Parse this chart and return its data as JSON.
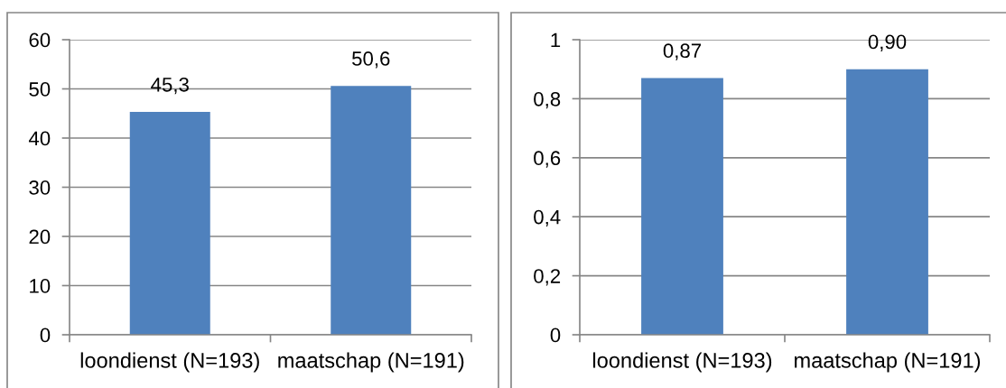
{
  "chart_data": [
    {
      "type": "bar",
      "categories": [
        "loondienst (N=193)",
        "maatschap (N=191)"
      ],
      "values": [
        45.3,
        50.6
      ],
      "value_labels": [
        "45,3",
        "50,6"
      ],
      "color": "#4f81bd",
      "ylim": [
        0,
        60
      ],
      "yticks": [
        0,
        10,
        20,
        30,
        40,
        50,
        60
      ],
      "grid": "y"
    },
    {
      "type": "bar",
      "categories": [
        "loondienst (N=193)",
        "maatschap (N=191)"
      ],
      "values": [
        0.87,
        0.9
      ],
      "value_labels": [
        "0,87",
        "0,90"
      ],
      "color": "#4f81bd",
      "ylim": [
        0,
        1
      ],
      "yticks": [
        0,
        {
          "value": 0.2,
          "label": "0,2"
        },
        {
          "value": 0.4,
          "label": "0,4"
        },
        {
          "value": 0.6,
          "label": "0,6"
        },
        {
          "value": 0.8,
          "label": "0,8"
        },
        1
      ],
      "grid": "y"
    }
  ]
}
